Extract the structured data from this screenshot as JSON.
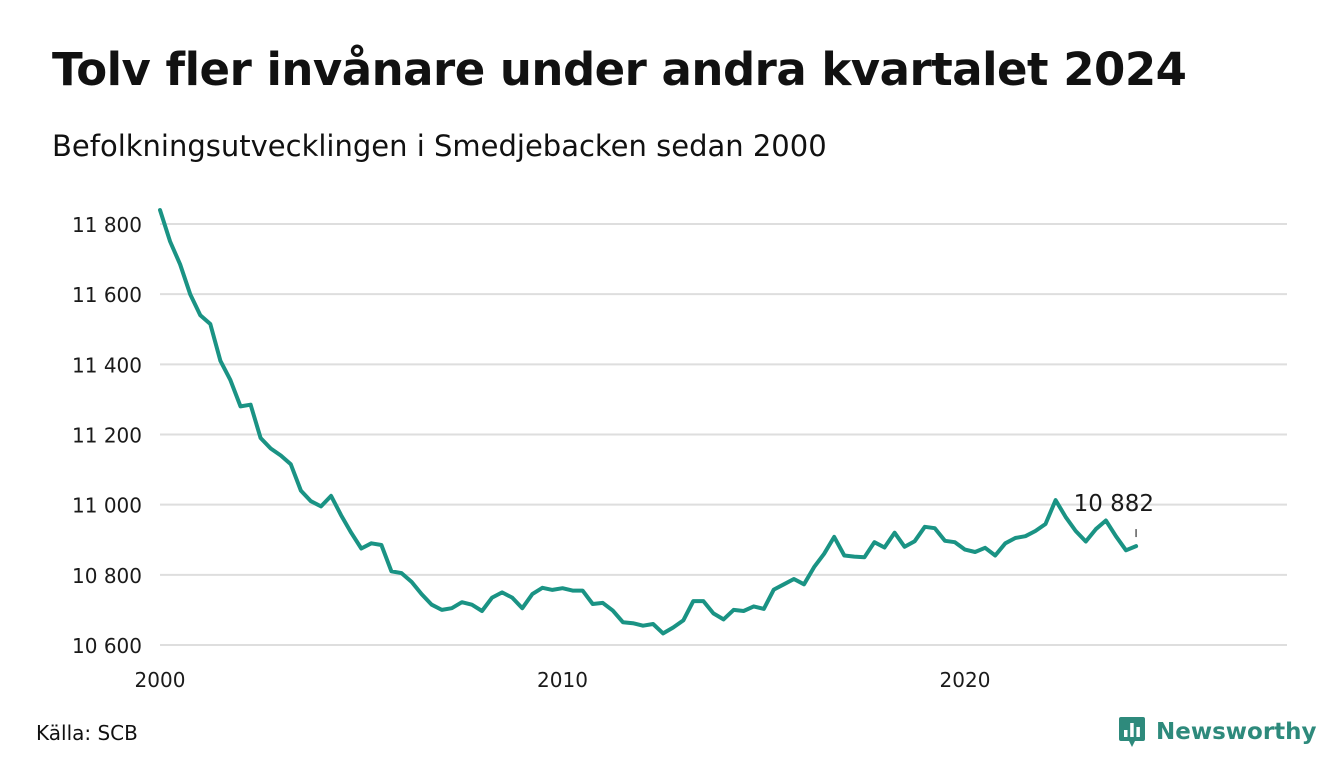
{
  "header": {
    "title": "Tolv fler invånare under andra kvartalet 2024",
    "subtitle": "Befolkningsutvecklingen i Smedjebacken sedan 2000"
  },
  "footer": {
    "source": "Källa: SCB",
    "brand": "Newsworthy"
  },
  "colors": {
    "line": "#1a9384",
    "grid": "#dedede",
    "text": "#111111",
    "brand": "#2e8a7c"
  },
  "chart_data": {
    "type": "line",
    "title": "Tolv fler invånare under andra kvartalet 2024",
    "subtitle": "Befolkningsutvecklingen i Smedjebacken sedan 2000",
    "x_ticks": [
      {
        "value": 2000,
        "label": "2000"
      },
      {
        "value": 2010,
        "label": "2010"
      },
      {
        "value": 2020,
        "label": "2020"
      }
    ],
    "y_ticks": [
      {
        "value": 10600,
        "label": "10 600"
      },
      {
        "value": 10800,
        "label": "10 800"
      },
      {
        "value": 11000,
        "label": "11 000"
      },
      {
        "value": 11200,
        "label": "11 200"
      },
      {
        "value": 11400,
        "label": "11 400"
      },
      {
        "value": 11600,
        "label": "11 600"
      },
      {
        "value": 11800,
        "label": "11 800"
      }
    ],
    "xlim": [
      2000,
      2028
    ],
    "ylim": [
      10600,
      11800
    ],
    "grid": true,
    "annotation": {
      "x": 2024.25,
      "y": 10882,
      "label": "10 882"
    },
    "x": [
      2000.0,
      2000.25,
      2000.5,
      2000.75,
      2001.0,
      2001.25,
      2001.5,
      2001.75,
      2002.0,
      2002.25,
      2002.5,
      2002.75,
      2003.0,
      2003.25,
      2003.5,
      2003.75,
      2004.0,
      2004.25,
      2004.5,
      2004.75,
      2005.0,
      2005.25,
      2005.5,
      2005.75,
      2006.0,
      2006.25,
      2006.5,
      2006.75,
      2007.0,
      2007.25,
      2007.5,
      2007.75,
      2008.0,
      2008.25,
      2008.5,
      2008.75,
      2009.0,
      2009.25,
      2009.5,
      2009.75,
      2010.0,
      2010.25,
      2010.5,
      2010.75,
      2011.0,
      2011.25,
      2011.5,
      2011.75,
      2012.0,
      2012.25,
      2012.5,
      2012.75,
      2013.0,
      2013.25,
      2013.5,
      2013.75,
      2014.0,
      2014.25,
      2014.5,
      2014.75,
      2015.0,
      2015.25,
      2015.5,
      2015.75,
      2016.0,
      2016.25,
      2016.5,
      2016.75,
      2017.0,
      2017.25,
      2017.5,
      2017.75,
      2018.0,
      2018.25,
      2018.5,
      2018.75,
      2019.0,
      2019.25,
      2019.5,
      2019.75,
      2020.0,
      2020.25,
      2020.5,
      2020.75,
      2021.0,
      2021.25,
      2021.5,
      2021.75,
      2022.0,
      2022.25,
      2022.5,
      2022.75,
      2023.0,
      2023.25,
      2023.5,
      2023.75,
      2024.0,
      2024.25
    ],
    "y": [
      11840,
      11750,
      11685,
      11600,
      11540,
      11515,
      11410,
      11355,
      11280,
      11285,
      11190,
      11160,
      11140,
      11115,
      11040,
      11010,
      10995,
      11025,
      10970,
      10920,
      10875,
      10890,
      10885,
      10810,
      10805,
      10780,
      10745,
      10715,
      10700,
      10705,
      10722,
      10715,
      10697,
      10735,
      10750,
      10735,
      10705,
      10745,
      10763,
      10757,
      10762,
      10755,
      10755,
      10717,
      10720,
      10698,
      10665,
      10662,
      10655,
      10660,
      10633,
      10650,
      10670,
      10725,
      10725,
      10690,
      10673,
      10700,
      10697,
      10710,
      10703,
      10758,
      10773,
      10788,
      10773,
      10822,
      10860,
      10908,
      10855,
      10852,
      10850,
      10893,
      10878,
      10920,
      10880,
      10896,
      10937,
      10933,
      10897,
      10893,
      10872,
      10865,
      10877,
      10855,
      10890,
      10905,
      10910,
      10925,
      10945,
      11013,
      10965,
      10925,
      10895,
      10930,
      10955,
      10910,
      10870,
      10882
    ]
  }
}
